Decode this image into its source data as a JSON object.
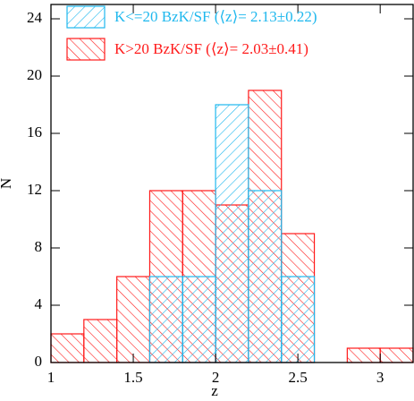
{
  "chart_data": {
    "type": "histogram",
    "xlabel": "z",
    "ylabel": "N",
    "bins": [
      1.0,
      1.2,
      1.4,
      1.6,
      1.8,
      2.0,
      2.2,
      2.4,
      2.6,
      2.8,
      3.0,
      3.2
    ],
    "series": [
      {
        "name": "K>20 BzK/SF (⟨z⟩= 2.03±0.41)",
        "color": "#ff1a1a",
        "hatch": "/",
        "values": [
          2,
          3,
          6,
          12,
          12,
          11,
          19,
          9,
          0,
          1,
          1
        ]
      },
      {
        "name": "K<=20 BzK/SF (⟨z⟩= 2.13±0.22)",
        "color": "#1fb8ee",
        "hatch": "\\",
        "values": [
          0,
          0,
          0,
          6,
          6,
          18,
          12,
          6,
          0,
          0,
          0
        ]
      }
    ],
    "legend": "upper left",
    "xlim": [
      1,
      3.2
    ],
    "ylim": [
      0,
      25
    ],
    "xticks": [
      1,
      1.5,
      2,
      2.5,
      3
    ],
    "yticks": [
      0,
      4,
      8,
      12,
      16,
      20,
      24
    ]
  }
}
